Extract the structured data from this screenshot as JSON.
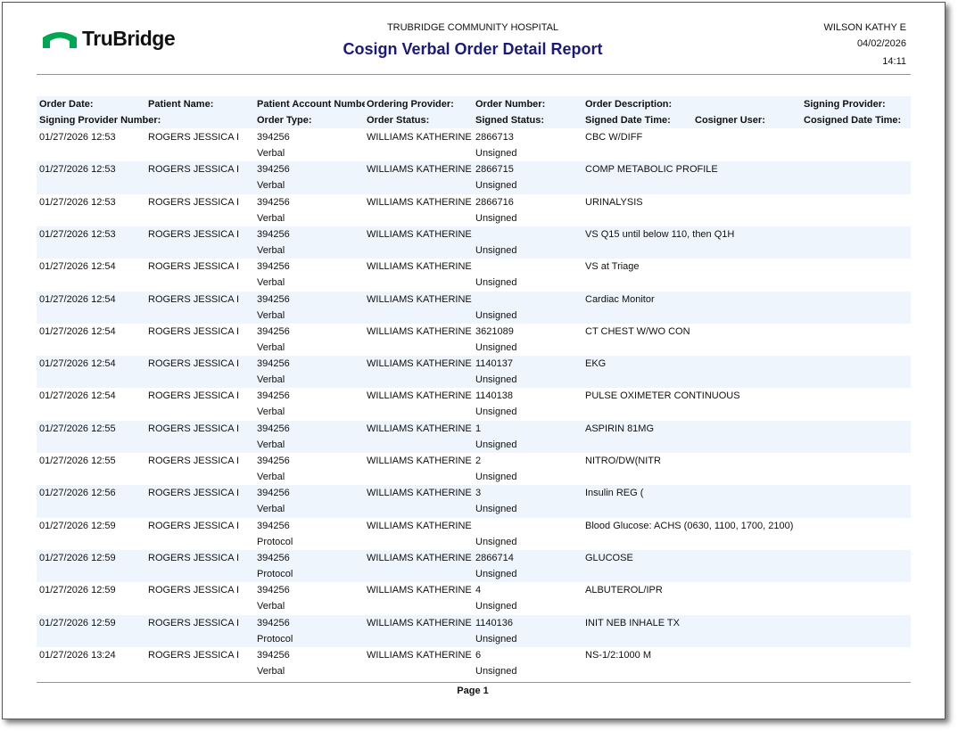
{
  "header": {
    "logo_text": "TruBridge",
    "hospital": "TRUBRIDGE COMMUNITY HOSPITAL",
    "title": "Cosign Verbal Order Detail Report",
    "user": "WILSON KATHY E",
    "date": "04/02/2026",
    "time": "14:11",
    "brand_color": "#00a651",
    "title_color": "#1a1a7a"
  },
  "columns": {
    "line1": [
      "Order Date:",
      "Patient Name:",
      "Patient Account Number:",
      "Ordering Provider:",
      "Order Number:",
      "Order Description:",
      "",
      "Signing Provider:"
    ],
    "line2": [
      "Signing Provider Number:",
      "",
      "Order Type:",
      "Order Status:",
      "Signed Status:",
      "Signed Date Time:",
      "Cosigner User:",
      "Cosigned Date Time:"
    ]
  },
  "rows": [
    {
      "date": "01/27/2026 12:53",
      "patient": "ROGERS JESSICA I",
      "account": "394256",
      "provider": "WILLIAMS KATHERINE",
      "order_number": "2866713",
      "description": "CBC W/DIFF",
      "type": "Verbal",
      "signed_status": "Unsigned"
    },
    {
      "date": "01/27/2026 12:53",
      "patient": "ROGERS JESSICA I",
      "account": "394256",
      "provider": "WILLIAMS KATHERINE",
      "order_number": "2866715",
      "description": "COMP METABOLIC PROFILE",
      "type": "Verbal",
      "signed_status": "Unsigned"
    },
    {
      "date": "01/27/2026 12:53",
      "patient": "ROGERS JESSICA I",
      "account": "394256",
      "provider": "WILLIAMS KATHERINE",
      "order_number": "2866716",
      "description": "URINALYSIS",
      "type": "Verbal",
      "signed_status": "Unsigned"
    },
    {
      "date": "01/27/2026 12:53",
      "patient": "ROGERS JESSICA I",
      "account": "394256",
      "provider": "WILLIAMS KATHERINE",
      "order_number": "",
      "description": "VS Q15 until below 110, then Q1H",
      "type": "Verbal",
      "signed_status": "Unsigned"
    },
    {
      "date": "01/27/2026 12:54",
      "patient": "ROGERS JESSICA I",
      "account": "394256",
      "provider": "WILLIAMS KATHERINE",
      "order_number": "",
      "description": "VS at Triage",
      "type": "Verbal",
      "signed_status": "Unsigned"
    },
    {
      "date": "01/27/2026 12:54",
      "patient": "ROGERS JESSICA I",
      "account": "394256",
      "provider": "WILLIAMS KATHERINE",
      "order_number": "",
      "description": "Cardiac Monitor",
      "type": "Verbal",
      "signed_status": "Unsigned"
    },
    {
      "date": "01/27/2026 12:54",
      "patient": "ROGERS JESSICA I",
      "account": "394256",
      "provider": "WILLIAMS KATHERINE",
      "order_number": "3621089",
      "description": "CT CHEST W/WO CON",
      "type": "Verbal",
      "signed_status": "Unsigned"
    },
    {
      "date": "01/27/2026 12:54",
      "patient": "ROGERS JESSICA I",
      "account": "394256",
      "provider": "WILLIAMS KATHERINE",
      "order_number": "1140137",
      "description": "EKG",
      "type": "Verbal",
      "signed_status": "Unsigned"
    },
    {
      "date": "01/27/2026 12:54",
      "patient": "ROGERS JESSICA I",
      "account": "394256",
      "provider": "WILLIAMS KATHERINE",
      "order_number": "1140138",
      "description": "PULSE OXIMETER CONTINUOUS",
      "type": "Verbal",
      "signed_status": "Unsigned"
    },
    {
      "date": "01/27/2026 12:55",
      "patient": "ROGERS JESSICA I",
      "account": "394256",
      "provider": "WILLIAMS KATHERINE",
      "order_number": "1",
      "description": "ASPIRIN 81MG",
      "type": "Verbal",
      "signed_status": "Unsigned"
    },
    {
      "date": "01/27/2026 12:55",
      "patient": "ROGERS JESSICA I",
      "account": "394256",
      "provider": "WILLIAMS KATHERINE",
      "order_number": "2",
      "description": "NITRO/DW(NITR",
      "type": "Verbal",
      "signed_status": "Unsigned"
    },
    {
      "date": "01/27/2026 12:56",
      "patient": "ROGERS JESSICA I",
      "account": "394256",
      "provider": "WILLIAMS KATHERINE",
      "order_number": "3",
      "description": "Insulin REG (",
      "type": "Verbal",
      "signed_status": "Unsigned"
    },
    {
      "date": "01/27/2026 12:59",
      "patient": "ROGERS JESSICA I",
      "account": "394256",
      "provider": "WILLIAMS KATHERINE",
      "order_number": "",
      "description": "Blood Glucose: ACHS (0630, 1100, 1700, 2100)",
      "type": "Protocol",
      "signed_status": "Unsigned"
    },
    {
      "date": "01/27/2026 12:59",
      "patient": "ROGERS JESSICA I",
      "account": "394256",
      "provider": "WILLIAMS KATHERINE",
      "order_number": "2866714",
      "description": "GLUCOSE",
      "type": "Protocol",
      "signed_status": "Unsigned"
    },
    {
      "date": "01/27/2026 12:59",
      "patient": "ROGERS JESSICA I",
      "account": "394256",
      "provider": "WILLIAMS KATHERINE",
      "order_number": "4",
      "description": "ALBUTEROL/IPR",
      "type": "Verbal",
      "signed_status": "Unsigned"
    },
    {
      "date": "01/27/2026 12:59",
      "patient": "ROGERS JESSICA I",
      "account": "394256",
      "provider": "WILLIAMS KATHERINE",
      "order_number": "1140136",
      "description": "INIT NEB INHALE TX",
      "type": "Protocol",
      "signed_status": "Unsigned"
    },
    {
      "date": "01/27/2026 13:24",
      "patient": "ROGERS JESSICA I",
      "account": "394256",
      "provider": "WILLIAMS KATHERINE",
      "order_number": "6",
      "description": "NS-1/2:1000 M",
      "type": "Verbal",
      "signed_status": "Unsigned"
    }
  ],
  "footer": {
    "page": "Page 1"
  }
}
